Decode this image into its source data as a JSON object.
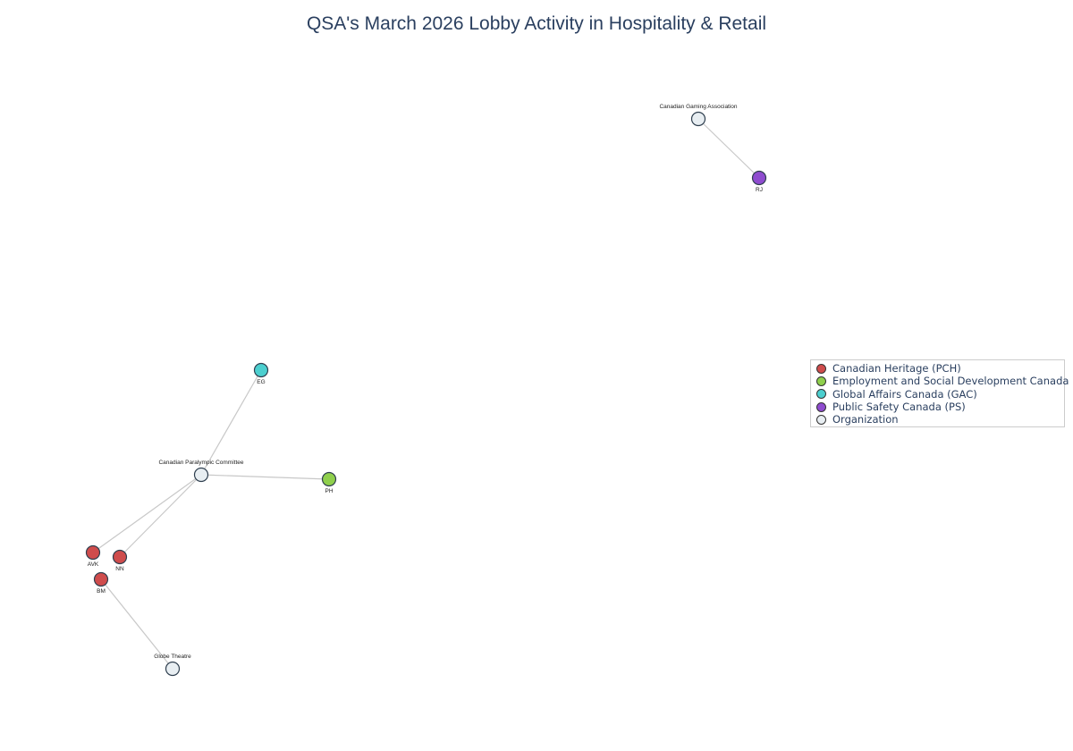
{
  "chart_data": {
    "type": "network",
    "title": "QSA's March 2026 Lobby Activity in Hospitality & Retail",
    "legend": {
      "placement": "right",
      "entries": [
        {
          "name": "Canadian Heritage (PCH)",
          "color": "#cf4c4c"
        },
        {
          "name": "Employment and Social Development Canada (ESDC)",
          "color": "#8fcf4c"
        },
        {
          "name": "Global Affairs Canada (GAC)",
          "color": "#4ccfcf"
        },
        {
          "name": "Public Safety Canada (PS)",
          "color": "#8f4ccf"
        },
        {
          "name": "Organization",
          "color": "#e8eef2"
        }
      ]
    },
    "nodes": [
      {
        "id": "cga",
        "label": "Canadian Gaming Association",
        "group": "Organization"
      },
      {
        "id": "rj",
        "label": "RJ",
        "group": "Public Safety Canada (PS)"
      },
      {
        "id": "eg",
        "label": "EG",
        "group": "Global Affairs Canada (GAC)"
      },
      {
        "id": "cpc",
        "label": "Canadian Paralympic Committee",
        "group": "Organization"
      },
      {
        "id": "ph",
        "label": "PH",
        "group": "Employment and Social Development Canada (ESDC)"
      },
      {
        "id": "avk",
        "label": "AVK",
        "group": "Canadian Heritage (PCH)"
      },
      {
        "id": "nn",
        "label": "NN",
        "group": "Canadian Heritage (PCH)"
      },
      {
        "id": "bm",
        "label": "BM",
        "group": "Canadian Heritage (PCH)"
      },
      {
        "id": "globe",
        "label": "Globe Theatre",
        "group": "Organization"
      }
    ],
    "edges": [
      {
        "source": "cga",
        "target": "rj"
      },
      {
        "source": "cpc",
        "target": "eg"
      },
      {
        "source": "cpc",
        "target": "ph"
      },
      {
        "source": "cpc",
        "target": "avk"
      },
      {
        "source": "cpc",
        "target": "nn"
      },
      {
        "source": "bm",
        "target": "globe"
      }
    ]
  }
}
